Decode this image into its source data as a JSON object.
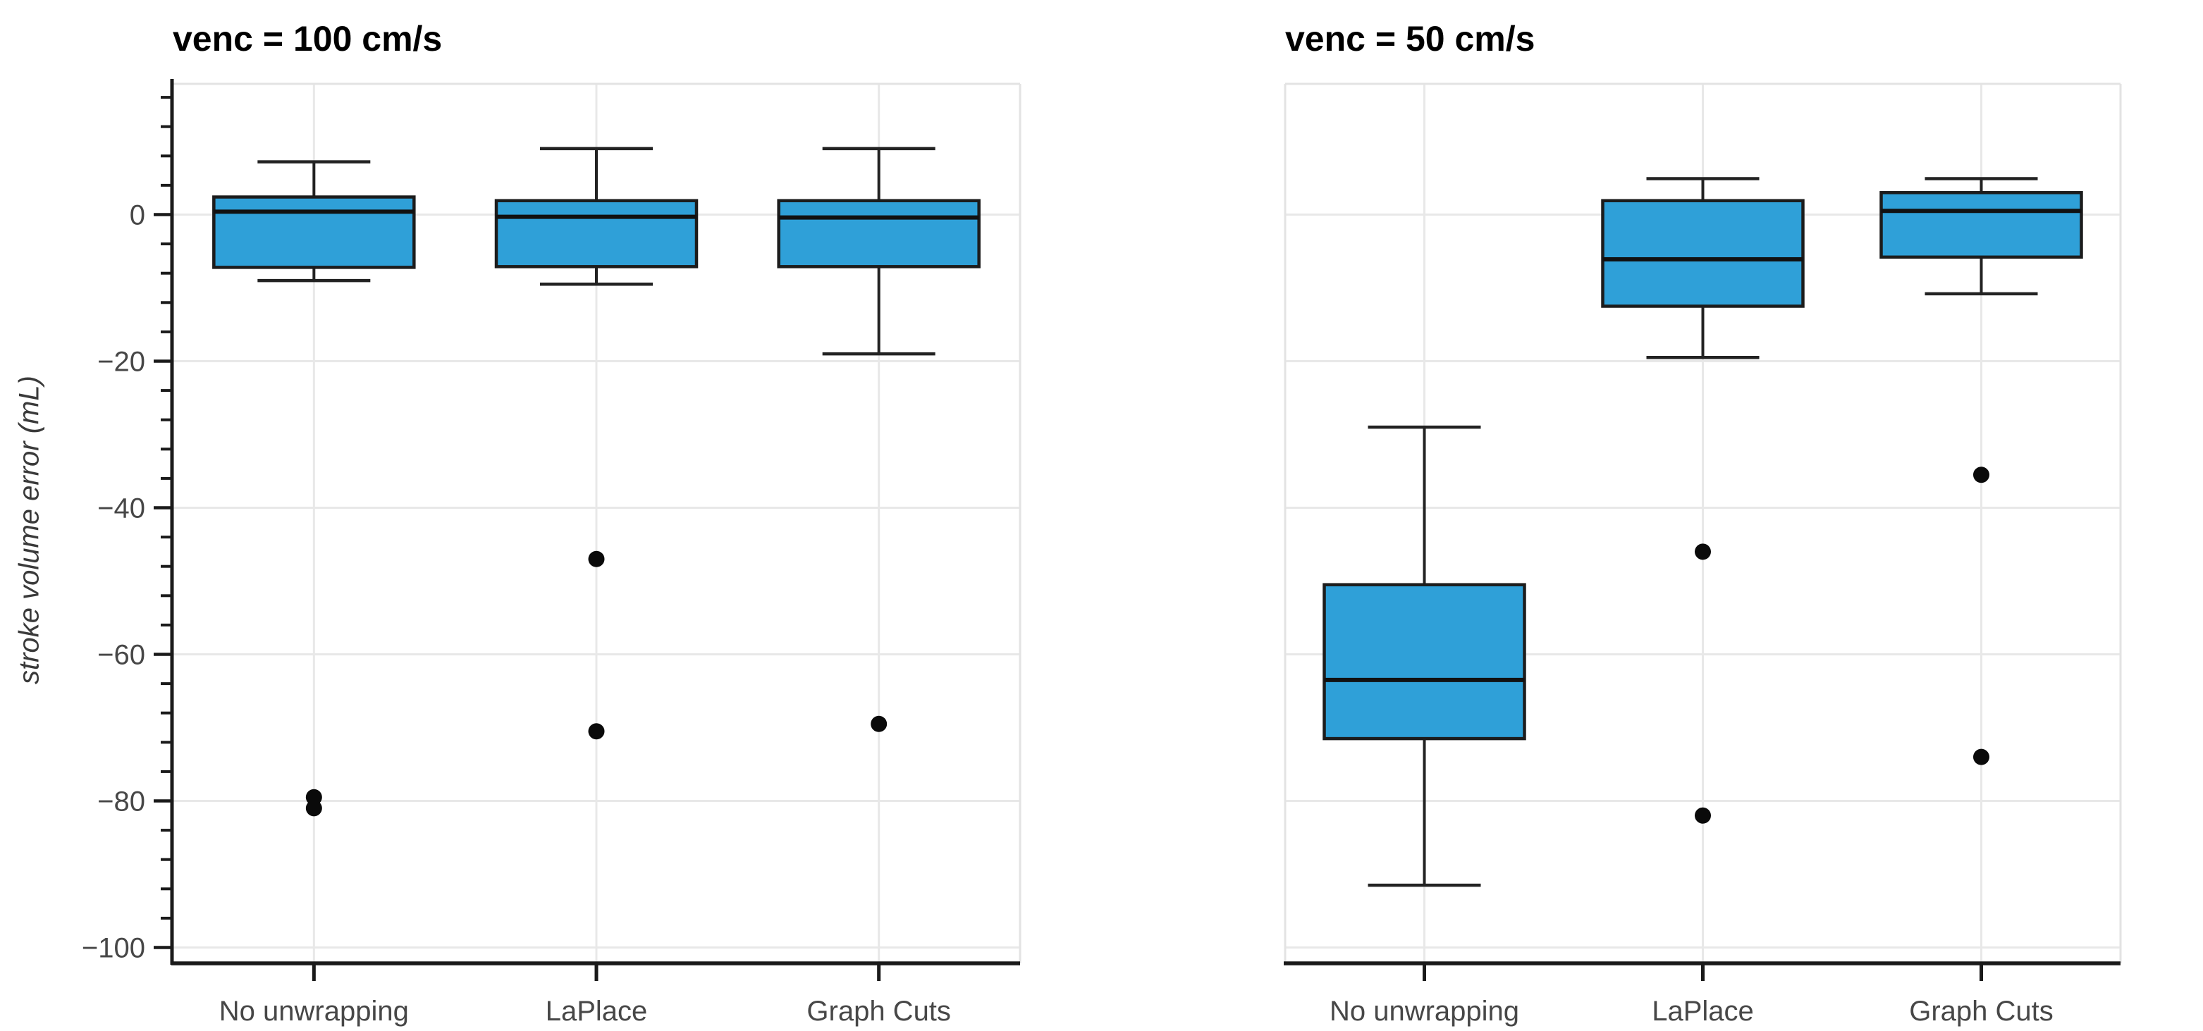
{
  "figure": {
    "y_axis_title": "stroke volume error (mL)"
  },
  "colors": {
    "box_fill": "#2FA0D8",
    "box_border": "#1c1c1c",
    "median_line": "#111111",
    "whisker": "#222222",
    "outlier_dot": "#0a0a0a",
    "gridline": "#e8e8e8",
    "panel_border": "#e3e3e3",
    "axis_line": "#1a1a1a",
    "tick_label": "#474747",
    "title_text": "#000000",
    "background": "#ffffff"
  },
  "chart_data": [
    {
      "type": "boxplot",
      "title": "venc = 100 cm/s",
      "ylabel": "stroke volume error (mL)",
      "categories": [
        "No unwrapping",
        "LaPlace",
        "Graph Cuts"
      ],
      "ylim": [
        -102.2,
        17.8
      ],
      "grid": true,
      "y_axis_visible": true,
      "yticks": {
        "values": [
          0,
          -20,
          -40,
          -60,
          -80,
          -100
        ],
        "labels": [
          "0",
          "−20",
          "−40",
          "−60",
          "−80",
          "−100"
        ],
        "minor_step": 4
      },
      "series": [
        {
          "category": "No unwrapping",
          "whisker_low": -9.0,
          "q1": -7.2,
          "median": 0.4,
          "q3": 2.4,
          "whisker_high": 7.2,
          "outliers": [
            -79.5,
            -81.0
          ]
        },
        {
          "category": "LaPlace",
          "whisker_low": -9.5,
          "q1": -7.1,
          "median": -0.3,
          "q3": 1.9,
          "whisker_high": 9.0,
          "outliers": [
            -47.0,
            -70.5
          ]
        },
        {
          "category": "Graph Cuts",
          "whisker_low": -19.0,
          "q1": -7.1,
          "median": -0.4,
          "q3": 1.9,
          "whisker_high": 9.0,
          "outliers": [
            -69.5
          ]
        }
      ]
    },
    {
      "type": "boxplot",
      "title": "venc = 50 cm/s",
      "ylabel": "stroke volume error (mL)",
      "categories": [
        "No unwrapping",
        "LaPlace",
        "Graph Cuts"
      ],
      "ylim": [
        -102.2,
        17.8
      ],
      "grid": true,
      "y_axis_visible": false,
      "yticks": {
        "values": [
          0,
          -20,
          -40,
          -60,
          -80,
          -100
        ],
        "labels": [
          "0",
          "−20",
          "−40",
          "−60",
          "−80",
          "−100"
        ],
        "minor_step": 4
      },
      "series": [
        {
          "category": "No unwrapping",
          "whisker_low": -91.5,
          "q1": -71.5,
          "median": -63.5,
          "q3": -50.5,
          "whisker_high": -29.0,
          "outliers": []
        },
        {
          "category": "LaPlace",
          "whisker_low": -19.5,
          "q1": -12.5,
          "median": -6.1,
          "q3": 1.9,
          "whisker_high": 4.9,
          "outliers": [
            -46.0,
            -82.0
          ]
        },
        {
          "category": "Graph Cuts",
          "whisker_low": -10.8,
          "q1": -5.8,
          "median": 0.5,
          "q3": 3.0,
          "whisker_high": 4.9,
          "outliers": [
            -35.5,
            -74.0
          ]
        }
      ]
    }
  ]
}
